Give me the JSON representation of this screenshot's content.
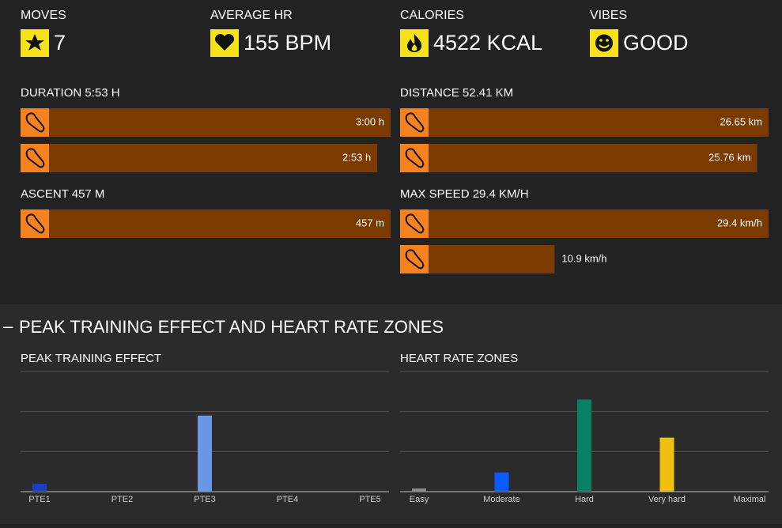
{
  "stats": [
    {
      "label": "MOVES",
      "value": "7"
    },
    {
      "label": "AVERAGE HR",
      "value": "155 BPM"
    },
    {
      "label": "CALORIES",
      "value": "4522 KCAL"
    },
    {
      "label": "VIBES",
      "value": "GOOD"
    }
  ],
  "meters": [
    {
      "title": "DURATION 5:53 H",
      "bars": [
        {
          "value": 180,
          "label": "3:00 h"
        },
        {
          "value": 173,
          "label": "2:53 h"
        }
      ]
    },
    {
      "title": "DISTANCE 52.41 KM",
      "bars": [
        {
          "value": 26.65,
          "label": "26.65 km"
        },
        {
          "value": 25.76,
          "label": "25.76 km"
        }
      ]
    },
    {
      "title": "ASCENT 457 M",
      "bars": [
        {
          "value": 457,
          "label": "457 m"
        }
      ]
    },
    {
      "title": "MAX SPEED 29.4 KM/H",
      "bars": [
        {
          "value": 29.4,
          "label": "29.4 km/h"
        },
        {
          "value": 10.9,
          "label": "10.9 km/h"
        }
      ]
    }
  ],
  "section_title": "PEAK TRAINING EFFECT AND HEART RATE ZONES",
  "chart_data": [
    {
      "type": "bar",
      "title": "PEAK TRAINING EFFECT",
      "categories": [
        "PTE1",
        "PTE2",
        "PTE3",
        "PTE4",
        "PTE5"
      ],
      "values": [
        0.2,
        0,
        1.9,
        0,
        0
      ],
      "colors": [
        "#1a3fc0",
        "#1a3fc0",
        "#6a96e6",
        "#6a96e6",
        "#6a96e6"
      ],
      "ylim": [
        0,
        3
      ],
      "grid": true
    },
    {
      "type": "bar",
      "title": "HEART RATE ZONES",
      "categories": [
        "Easy",
        "Moderate",
        "Hard",
        "Very hard",
        "Maximal"
      ],
      "values": [
        0.08,
        0.48,
        2.3,
        1.35,
        0
      ],
      "colors": [
        "#8a8a8a",
        "#0a5cff",
        "#0a8062",
        "#f0c010",
        "#d04020"
      ],
      "ylim": [
        0,
        3
      ],
      "grid": true
    }
  ]
}
